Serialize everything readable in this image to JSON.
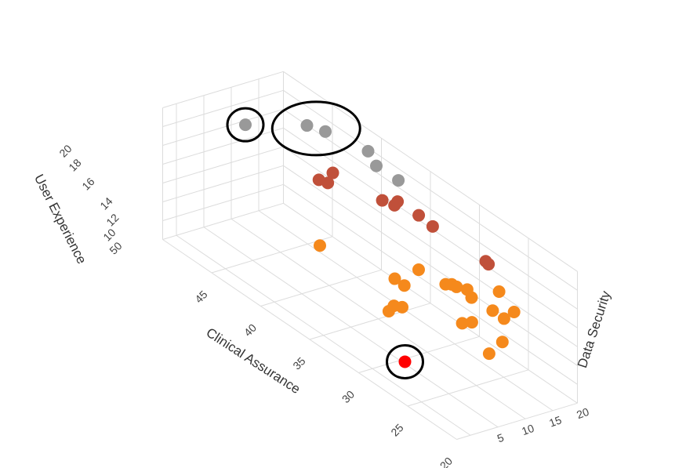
{
  "chart_data": {
    "type": "scatter3d",
    "axes": {
      "x": {
        "label": "Clinical Assurance",
        "ticks": [
          "20",
          "25",
          "30",
          "35",
          "40",
          "45"
        ]
      },
      "y": {
        "label": "Data Security",
        "ticks": [
          "5",
          "10",
          "15",
          "20"
        ]
      },
      "z": {
        "label": "User Experience",
        "ticks": [
          "50",
          "10",
          "12",
          "14",
          "16",
          "18",
          "20"
        ]
      }
    },
    "colors": {
      "gray": "#999999",
      "brown": "#c0503a",
      "orange": "#f5891c",
      "red": "#ff0000",
      "grid": "#dcdcdc"
    },
    "series": [
      {
        "name": "gray",
        "color": "#999999",
        "points": [
          {
            "x": 48.0,
            "y": 14.0,
            "z": 19.6
          },
          {
            "x": 46.2,
            "y": 22.0,
            "z": 19.4
          },
          {
            "x": 44.6,
            "y": 22.5,
            "z": 19.8
          },
          {
            "x": 42.2,
            "y": 26.0,
            "z": 18.8
          },
          {
            "x": 40.8,
            "y": 25.0,
            "z": 18.4
          },
          {
            "x": 39.0,
            "y": 25.8,
            "z": 18.0
          }
        ]
      },
      {
        "name": "brown",
        "color": "#c0503a",
        "points": [
          {
            "x": 43.0,
            "y": 21.0,
            "z": 16.8
          },
          {
            "x": 43.3,
            "y": 19.0,
            "z": 16.2
          },
          {
            "x": 42.5,
            "y": 19.2,
            "z": 16.4
          },
          {
            "x": 37.6,
            "y": 22.6,
            "z": 16.9
          },
          {
            "x": 37.4,
            "y": 22.8,
            "z": 17.4
          },
          {
            "x": 38.4,
            "y": 21.8,
            "z": 17.0
          },
          {
            "x": 35.8,
            "y": 23.8,
            "z": 16.9
          },
          {
            "x": 34.6,
            "y": 24.2,
            "z": 16.5
          },
          {
            "x": 30.2,
            "y": 26.0,
            "z": 15.6
          },
          {
            "x": 29.8,
            "y": 25.8,
            "z": 15.6
          }
        ]
      },
      {
        "name": "orange",
        "color": "#f5891c",
        "points": [
          {
            "x": 37.6,
            "y": 9.0,
            "z": 15.0
          },
          {
            "x": 32.0,
            "y": 17.0,
            "z": 15.0
          },
          {
            "x": 32.2,
            "y": 13.0,
            "z": 14.6
          },
          {
            "x": 31.0,
            "y": 12.6,
            "z": 14.8
          },
          {
            "x": 29.2,
            "y": 9.0,
            "z": 14.4
          },
          {
            "x": 29.6,
            "y": 8.2,
            "z": 14.4
          },
          {
            "x": 29.0,
            "y": 6.2,
            "z": 14.6
          },
          {
            "x": 31.6,
            "y": 21.2,
            "z": 13.0
          },
          {
            "x": 31.2,
            "y": 21.6,
            "z": 13.2
          },
          {
            "x": 29.4,
            "y": 21.2,
            "z": 14.0
          },
          {
            "x": 30.6,
            "y": 21.4,
            "z": 13.4
          },
          {
            "x": 29.4,
            "y": 22.0,
            "z": 13.0
          },
          {
            "x": 25.4,
            "y": 22.6,
            "z": 14.2
          },
          {
            "x": 27.8,
            "y": 19.2,
            "z": 12.0
          },
          {
            "x": 28.0,
            "y": 17.8,
            "z": 12.0
          },
          {
            "x": 27.6,
            "y": 23.8,
            "z": 14.6
          },
          {
            "x": 26.2,
            "y": 22.2,
            "z": 13.0
          },
          {
            "x": 26.8,
            "y": 21.2,
            "z": 13.6
          },
          {
            "x": 24.8,
            "y": 19.4,
            "z": 12.0
          },
          {
            "x": 23.8,
            "y": 15.2,
            "z": 12.2
          }
        ]
      },
      {
        "name": "red",
        "color": "#ff0000",
        "points": [
          {
            "x": 25.0,
            "y": 2.0,
            "z": 12.8
          }
        ]
      }
    ],
    "highlights": [
      {
        "around": "gray",
        "index": 0
      },
      {
        "around": "gray",
        "index": 1,
        "index2": 2
      },
      {
        "around": "red",
        "index": 0
      }
    ],
    "grid": true
  }
}
